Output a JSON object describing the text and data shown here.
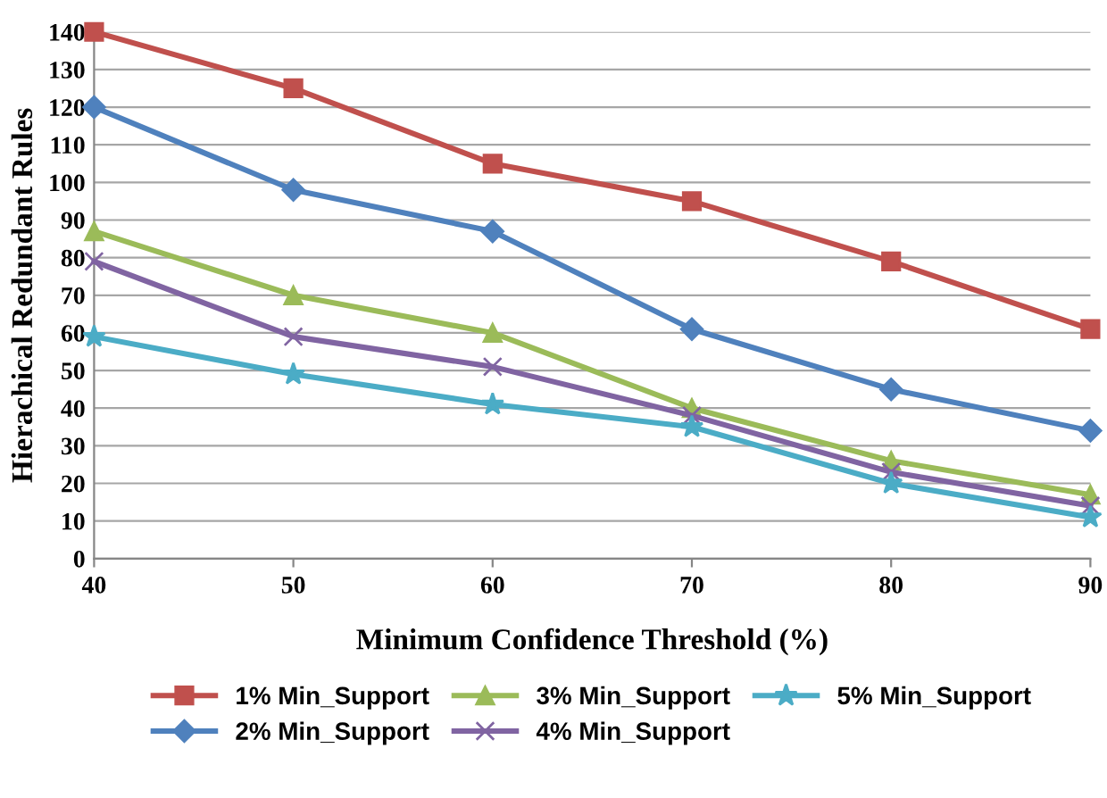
{
  "chart_data": {
    "type": "line",
    "xlabel": "Minimum Confidence Threshold (%)",
    "ylabel": "Hierachical Redundant Rules",
    "x": [
      40,
      50,
      60,
      70,
      80,
      90
    ],
    "xlim": [
      40,
      90
    ],
    "xticks": [
      40,
      50,
      60,
      70,
      80,
      90
    ],
    "ylim": [
      0,
      140
    ],
    "yticks": [
      0,
      10,
      20,
      30,
      40,
      50,
      60,
      70,
      80,
      90,
      100,
      110,
      120,
      130,
      140
    ],
    "grid": "y",
    "legend": "bottom",
    "series": [
      {
        "name": "1% Min_Support",
        "color": "#c0504d",
        "marker": "square",
        "values": [
          140,
          125,
          105,
          95,
          79,
          61
        ]
      },
      {
        "name": "2% Min_Support",
        "color": "#4f81bd",
        "marker": "diamond",
        "values": [
          120,
          98,
          87,
          61,
          45,
          34
        ]
      },
      {
        "name": "3% Min_Support",
        "color": "#9bbb59",
        "marker": "triangle",
        "values": [
          87,
          70,
          60,
          40,
          26,
          17
        ]
      },
      {
        "name": "4% Min_Support",
        "color": "#8064a2",
        "marker": "cross",
        "values": [
          79,
          59,
          51,
          38,
          23,
          14
        ]
      },
      {
        "name": "5% Min_Support",
        "color": "#4bacc6",
        "marker": "star",
        "values": [
          59,
          49,
          41,
          35,
          20,
          11
        ]
      }
    ]
  }
}
